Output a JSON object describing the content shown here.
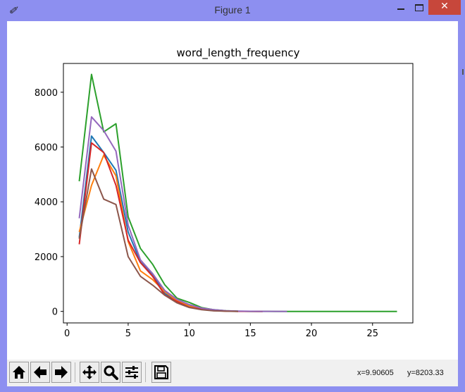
{
  "window": {
    "title": "Figure 1",
    "close_label": "✕"
  },
  "toolbar": {
    "buttons": [
      "home-icon",
      "back-arrow-icon",
      "forward-arrow-icon",
      "pan-icon",
      "zoom-icon",
      "subplots-configure-icon",
      "save-icon"
    ],
    "coord_x": "x=9.90605",
    "coord_y": "y=8203.33"
  },
  "chart_data": {
    "type": "line",
    "title": "word_length_frequency",
    "xlabel": "",
    "ylabel": "",
    "xlim": [
      -0.3,
      28.3
    ],
    "ylim": [
      -420,
      9050
    ],
    "xticks": [
      0,
      5,
      10,
      15,
      20,
      25
    ],
    "yticks": [
      0,
      2000,
      4000,
      6000,
      8000
    ],
    "grid": false,
    "legend": "none",
    "series": [
      {
        "color": "#1f77b4",
        "x": [
          1,
          2,
          3,
          4,
          5,
          6,
          7,
          8,
          9,
          10,
          11,
          12,
          13,
          14,
          15,
          16
        ],
        "y": [
          2700,
          6400,
          5800,
          5150,
          2900,
          1800,
          1350,
          650,
          380,
          230,
          110,
          45,
          18,
          6,
          2,
          0
        ]
      },
      {
        "color": "#ff7f0e",
        "x": [
          1,
          2,
          3,
          4,
          5,
          6,
          7,
          8,
          9,
          10,
          11,
          12,
          13,
          14,
          15,
          16
        ],
        "y": [
          2900,
          4600,
          5700,
          4950,
          2550,
          1480,
          1160,
          720,
          390,
          190,
          90,
          35,
          12,
          4,
          1,
          0
        ]
      },
      {
        "color": "#2ca02c",
        "x": [
          1,
          2,
          3,
          4,
          5,
          6,
          7,
          8,
          9,
          10,
          11,
          12,
          13,
          14,
          15,
          16,
          17,
          18,
          19,
          20,
          21,
          22,
          23,
          24,
          25,
          26,
          27
        ],
        "y": [
          4750,
          8650,
          6550,
          6850,
          3450,
          2300,
          1720,
          970,
          480,
          330,
          140,
          60,
          22,
          8,
          3,
          1,
          0,
          0,
          0,
          0,
          0,
          0,
          0,
          0,
          0,
          0,
          0
        ]
      },
      {
        "color": "#d62728",
        "x": [
          1,
          2,
          3,
          4,
          5,
          6,
          7,
          8,
          9,
          10,
          11,
          12,
          13,
          14,
          15,
          16
        ],
        "y": [
          2450,
          6150,
          5800,
          4600,
          2600,
          1780,
          1280,
          600,
          360,
          150,
          80,
          28,
          10,
          3,
          1,
          0
        ]
      },
      {
        "color": "#9467bd",
        "x": [
          1,
          2,
          3,
          4,
          5,
          6,
          7,
          8,
          9,
          10,
          11,
          12,
          13,
          14,
          15,
          16,
          17,
          18
        ],
        "y": [
          3400,
          7100,
          6600,
          5850,
          3150,
          1880,
          1380,
          760,
          440,
          250,
          120,
          60,
          25,
          10,
          4,
          2,
          1,
          0
        ]
      },
      {
        "color": "#8c564b",
        "x": [
          1,
          2,
          3,
          4,
          5,
          6,
          7,
          8,
          9,
          10,
          11,
          12,
          13,
          14
        ],
        "y": [
          2650,
          5200,
          4100,
          3900,
          2000,
          1280,
          960,
          590,
          310,
          140,
          60,
          20,
          6,
          0
        ]
      }
    ]
  }
}
